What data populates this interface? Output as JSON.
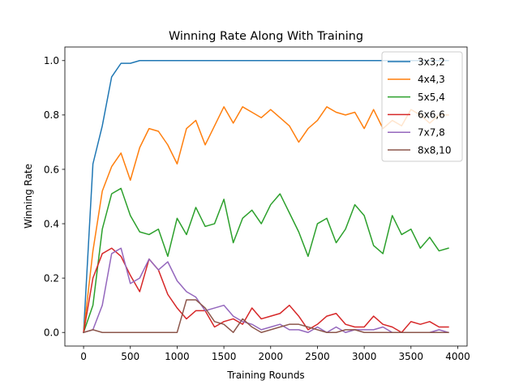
{
  "chart_data": {
    "type": "line",
    "title": "Winning Rate Along With Training",
    "xlabel": "Training Rounds",
    "ylabel": "Winning Rate",
    "xlim": [
      -200,
      4100
    ],
    "ylim": [
      -0.05,
      1.05
    ],
    "xticks": [
      0,
      500,
      1000,
      1500,
      2000,
      2500,
      3000,
      3500,
      4000
    ],
    "yticks": [
      0.0,
      0.2,
      0.4,
      0.6,
      0.8,
      1.0
    ],
    "xtick_labels": [
      "0",
      "500",
      "1000",
      "1500",
      "2000",
      "2500",
      "3000",
      "3500",
      "4000"
    ],
    "ytick_labels": [
      "0.0",
      "0.2",
      "0.4",
      "0.6",
      "0.8",
      "1.0"
    ],
    "grid": false,
    "legend_position": "top-right",
    "x": [
      0,
      100,
      200,
      300,
      400,
      500,
      600,
      700,
      800,
      900,
      1000,
      1100,
      1200,
      1300,
      1400,
      1500,
      1600,
      1700,
      1800,
      1900,
      2000,
      2100,
      2200,
      2300,
      2400,
      2500,
      2600,
      2700,
      2800,
      2900,
      3000,
      3100,
      3200,
      3300,
      3400,
      3500,
      3600,
      3700,
      3800,
      3900
    ],
    "series": [
      {
        "name": "3x3,2",
        "color": "#1f77b4",
        "values": [
          0.0,
          0.62,
          0.76,
          0.94,
          0.99,
          0.99,
          1.0,
          1.0,
          1.0,
          1.0,
          1.0,
          1.0,
          1.0,
          1.0,
          1.0,
          1.0,
          1.0,
          1.0,
          1.0,
          1.0,
          1.0,
          1.0,
          1.0,
          1.0,
          1.0,
          1.0,
          1.0,
          1.0,
          1.0,
          1.0,
          1.0,
          1.0,
          1.0,
          1.0,
          1.0,
          1.0,
          1.0,
          1.0,
          1.0,
          1.0
        ]
      },
      {
        "name": "4x4,3",
        "color": "#ff7f0e",
        "values": [
          0.0,
          0.3,
          0.52,
          0.61,
          0.66,
          0.56,
          0.68,
          0.75,
          0.74,
          0.69,
          0.62,
          0.75,
          0.78,
          0.69,
          0.76,
          0.83,
          0.77,
          0.83,
          0.81,
          0.79,
          0.82,
          0.79,
          0.76,
          0.7,
          0.75,
          0.78,
          0.83,
          0.81,
          0.8,
          0.81,
          0.75,
          0.82,
          0.75,
          0.78,
          0.76,
          0.82,
          0.8,
          0.77,
          0.8,
          0.8
        ]
      },
      {
        "name": "5x5,4",
        "color": "#2ca02c",
        "values": [
          0.0,
          0.1,
          0.38,
          0.51,
          0.53,
          0.43,
          0.37,
          0.36,
          0.38,
          0.28,
          0.42,
          0.36,
          0.46,
          0.39,
          0.4,
          0.49,
          0.33,
          0.42,
          0.45,
          0.4,
          0.47,
          0.51,
          0.44,
          0.37,
          0.28,
          0.4,
          0.42,
          0.33,
          0.38,
          0.47,
          0.43,
          0.32,
          0.29,
          0.43,
          0.36,
          0.38,
          0.31,
          0.35,
          0.3,
          0.31
        ]
      },
      {
        "name": "6x6,6",
        "color": "#d62728",
        "values": [
          0.0,
          0.2,
          0.29,
          0.31,
          0.28,
          0.21,
          0.15,
          0.27,
          0.23,
          0.14,
          0.09,
          0.05,
          0.08,
          0.08,
          0.02,
          0.04,
          0.05,
          0.03,
          0.09,
          0.05,
          0.06,
          0.07,
          0.1,
          0.06,
          0.01,
          0.03,
          0.06,
          0.07,
          0.03,
          0.02,
          0.02,
          0.06,
          0.03,
          0.02,
          0.0,
          0.04,
          0.03,
          0.04,
          0.02,
          0.02
        ]
      },
      {
        "name": "7x7,8",
        "color": "#9467bd",
        "values": [
          0.0,
          0.01,
          0.1,
          0.29,
          0.31,
          0.18,
          0.2,
          0.27,
          0.23,
          0.26,
          0.19,
          0.15,
          0.13,
          0.08,
          0.09,
          0.1,
          0.06,
          0.04,
          0.03,
          0.01,
          0.02,
          0.03,
          0.01,
          0.01,
          0.0,
          0.02,
          0.0,
          0.02,
          0.0,
          0.01,
          0.01,
          0.01,
          0.02,
          0.0,
          0.0,
          0.0,
          0.0,
          0.0,
          0.01,
          0.0
        ]
      },
      {
        "name": "8x8,10",
        "color": "#8c564b",
        "values": [
          0.0,
          0.01,
          0.0,
          0.0,
          0.0,
          0.0,
          0.0,
          0.0,
          0.0,
          0.0,
          0.0,
          0.12,
          0.12,
          0.09,
          0.04,
          0.03,
          0.0,
          0.05,
          0.02,
          0.0,
          0.01,
          0.02,
          0.03,
          0.03,
          0.02,
          0.01,
          0.0,
          0.0,
          0.01,
          0.01,
          0.0,
          0.0,
          0.0,
          0.0,
          0.0,
          0.0,
          0.0,
          0.0,
          0.0,
          0.0
        ]
      }
    ]
  }
}
